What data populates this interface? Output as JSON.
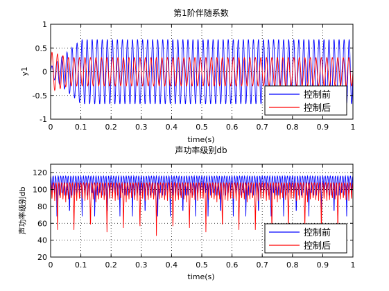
{
  "chart_data": [
    {
      "type": "line",
      "title": "第1阶伴随系数",
      "xlabel": "time(s)",
      "ylabel": "y1",
      "xlim": [
        0,
        1
      ],
      "ylim": [
        -1,
        1
      ],
      "xticks": [
        "0",
        "0.1",
        "0.2",
        "0.3",
        "0.4",
        "0.5",
        "0.6",
        "0.7",
        "0.8",
        "0.9",
        "1"
      ],
      "yticks": [
        "-1",
        "-0.5",
        "0",
        "0.5",
        "1"
      ],
      "grid": true,
      "legend_position": "bottom-right",
      "series": [
        {
          "name": "控制前",
          "color": "#0000ff",
          "signal": {
            "kind": "sine",
            "frequency_hz": 60,
            "amplitude": 0.68,
            "offset": 0,
            "ramp_end_s": 0.1,
            "initial_amplitude": 0.1
          }
        },
        {
          "name": "控制后",
          "color": "#ff0000",
          "signal": {
            "kind": "sine",
            "frequency_hz": 55,
            "amplitude": 0.3,
            "offset": 0,
            "initial_amplitude": 0.42,
            "settle_s": 0.06
          }
        }
      ]
    },
    {
      "type": "line",
      "title": "声功率级别db",
      "xlabel": "time(s)",
      "ylabel": "声功率级别db",
      "xlim": [
        0,
        1
      ],
      "ylim": [
        20,
        130
      ],
      "xticks": [
        "0",
        "0.1",
        "0.2",
        "0.3",
        "0.4",
        "0.5",
        "0.6",
        "0.7",
        "0.8",
        "0.9",
        "1"
      ],
      "yticks": [
        "20",
        "40",
        "60",
        "80",
        "100",
        "120"
      ],
      "grid": true,
      "legend_position": "bottom-right",
      "series": [
        {
          "name": "控制前",
          "color": "#0000ff",
          "signal": {
            "kind": "db_level",
            "frequency_hz": 120,
            "peak": 116,
            "trough": 90,
            "deep_trough": 62,
            "deep_every": 5
          }
        },
        {
          "name": "控制后",
          "color": "#ff0000",
          "signal": {
            "kind": "db_level",
            "frequency_hz": 110,
            "peak": 108,
            "trough": 85,
            "deep_trough": 45,
            "deep_every": 6
          }
        }
      ]
    }
  ]
}
